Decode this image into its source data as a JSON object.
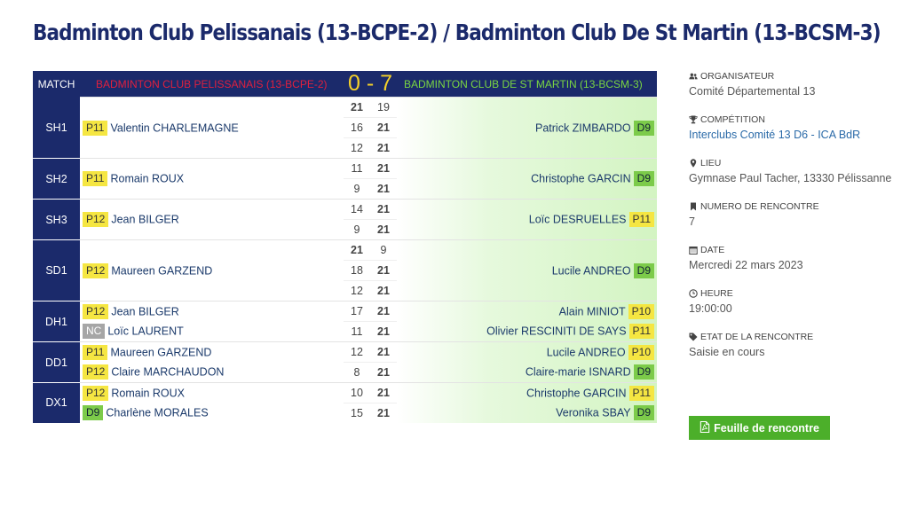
{
  "title": "Badminton Club Pelissanais (13-BCPE-2) / Badminton Club De St Martin (13-BCSM-3)",
  "header": {
    "match_label": "MATCH",
    "team1": "BADMINTON CLUB PELISSANAIS (13-BCPE-2)",
    "score": "0 - 7",
    "team2": "BADMINTON CLUB DE ST MARTIN (13-BCSM-3)"
  },
  "matches": [
    {
      "code": "SH1",
      "players1": [
        {
          "rank": "P11",
          "name": "Valentin CHARLEMAGNE"
        }
      ],
      "players2": [
        {
          "rank": "D9",
          "name": "Patrick ZIMBARDO"
        }
      ],
      "sets": [
        [
          21,
          19
        ],
        [
          16,
          21
        ],
        [
          12,
          21
        ]
      ]
    },
    {
      "code": "SH2",
      "players1": [
        {
          "rank": "P11",
          "name": "Romain ROUX"
        }
      ],
      "players2": [
        {
          "rank": "D9",
          "name": "Christophe GARCIN"
        }
      ],
      "sets": [
        [
          11,
          21
        ],
        [
          9,
          21
        ]
      ]
    },
    {
      "code": "SH3",
      "players1": [
        {
          "rank": "P12",
          "name": "Jean BILGER"
        }
      ],
      "players2": [
        {
          "rank": "P11",
          "name": "Loïc DESRUELLES"
        }
      ],
      "sets": [
        [
          14,
          21
        ],
        [
          9,
          21
        ]
      ]
    },
    {
      "code": "SD1",
      "players1": [
        {
          "rank": "P12",
          "name": "Maureen GARZEND"
        }
      ],
      "players2": [
        {
          "rank": "D9",
          "name": "Lucile ANDREO"
        }
      ],
      "sets": [
        [
          21,
          9
        ],
        [
          18,
          21
        ],
        [
          12,
          21
        ]
      ]
    },
    {
      "code": "DH1",
      "players1": [
        {
          "rank": "P12",
          "name": "Jean BILGER"
        },
        {
          "rank": "NC",
          "name": "Loïc LAURENT"
        }
      ],
      "players2": [
        {
          "rank": "P10",
          "name": "Alain MINIOT"
        },
        {
          "rank": "P11",
          "name": "Olivier RESCINITI DE SAYS"
        }
      ],
      "sets": [
        [
          17,
          21
        ],
        [
          11,
          21
        ]
      ]
    },
    {
      "code": "DD1",
      "players1": [
        {
          "rank": "P11",
          "name": "Maureen GARZEND"
        },
        {
          "rank": "P12",
          "name": "Claire MARCHAUDON"
        }
      ],
      "players2": [
        {
          "rank": "P10",
          "name": "Lucile ANDREO"
        },
        {
          "rank": "D9",
          "name": "Claire-marie ISNARD"
        }
      ],
      "sets": [
        [
          12,
          21
        ],
        [
          8,
          21
        ]
      ]
    },
    {
      "code": "DX1",
      "players1": [
        {
          "rank": "P12",
          "name": "Romain ROUX"
        },
        {
          "rank": "D9",
          "name": "Charlène MORALES"
        }
      ],
      "players2": [
        {
          "rank": "P11",
          "name": "Christophe GARCIN"
        },
        {
          "rank": "D9",
          "name": "Veronika SBAY"
        }
      ],
      "sets": [
        [
          10,
          21
        ],
        [
          15,
          21
        ]
      ]
    }
  ],
  "info": [
    {
      "key": "organisateur",
      "label": "ORGANISATEUR",
      "value": "Comité Départemental 13",
      "icon": "users-icon",
      "link": false
    },
    {
      "key": "competition",
      "label": "COMPÉTITION",
      "value": "Interclubs Comité 13 D6 - ICA BdR",
      "icon": "trophy-icon",
      "link": true
    },
    {
      "key": "lieu",
      "label": "LIEU",
      "value": "Gymnase Paul Tacher, 13330 Pélissanne",
      "icon": "map-marker-icon",
      "link": false
    },
    {
      "key": "numero",
      "label": "NUMERO DE RENCONTRE",
      "value": "7",
      "icon": "bookmark-icon",
      "link": false
    },
    {
      "key": "date",
      "label": "DATE",
      "value": "Mercredi 22 mars 2023",
      "icon": "calendar-icon",
      "link": false
    },
    {
      "key": "heure",
      "label": "HEURE",
      "value": "19:00:00",
      "icon": "clock-icon",
      "link": false
    },
    {
      "key": "etat",
      "label": "ETAT DE LA RENCONTRE",
      "value": "Saisie en cours",
      "icon": "tag-icon",
      "link": false
    }
  ],
  "sheet_button": {
    "label": "Feuille de rencontre",
    "icon": "file-pdf-icon"
  },
  "colors": {
    "navy": "#1b2a6b",
    "team1": "#e0203e",
    "score": "#f4d02a",
    "team2": "#7ad642",
    "win": "#4aa02c",
    "badge_p": "#f5e642",
    "badge_d": "#7ccb4a",
    "badge_nc": "#a6a6a6",
    "button": "#4caf2a"
  }
}
